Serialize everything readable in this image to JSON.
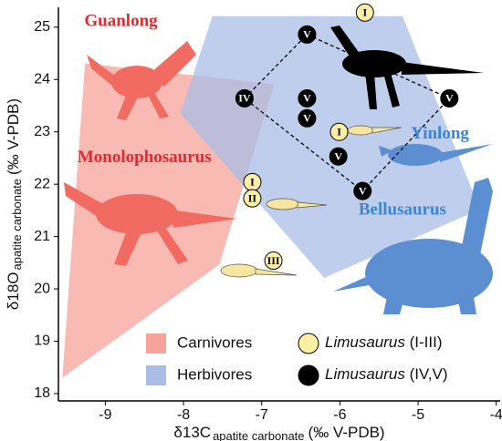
{
  "chart_data": {
    "type": "scatter",
    "xlabel": {
      "main": "δ13C",
      "sub": "apatite carbonate",
      "unit": "(‰ V-PDB)"
    },
    "ylabel": {
      "main": "δ18O",
      "sub": "apatite carbonate",
      "unit": "(‰ V-PDB)"
    },
    "xlim": [
      -9.6,
      -3.95
    ],
    "ylim": [
      17.86,
      25.38
    ],
    "xticks": [
      -9,
      -8,
      -7,
      -6,
      -5,
      -4
    ],
    "yticks": [
      18,
      19,
      20,
      21,
      22,
      23,
      24,
      25
    ],
    "regions": [
      {
        "name": "Carnivores",
        "color": "#f7a39b",
        "x": [
          -9.26,
          -6.84,
          -7.54,
          -9.55
        ],
        "y": [
          24.31,
          23.91,
          20.47,
          18.3
        ]
      },
      {
        "name": "Herbivores",
        "color": "#a9bde6",
        "x": [
          -7.63,
          -5.2,
          -4.21,
          -6.2,
          -8.04
        ],
        "y": [
          25.21,
          25.21,
          21.52,
          20.21,
          23.35
        ]
      }
    ],
    "series": [
      {
        "name": "Limusaurus (I-III)",
        "color": "#fdf0a6",
        "labels": [
          "I",
          "I",
          "I",
          "II",
          "III"
        ],
        "x": [
          -5.68,
          -6.01,
          -7.12,
          -7.12,
          -6.85
        ],
        "y": [
          25.28,
          23.0,
          22.04,
          21.73,
          20.54
        ]
      },
      {
        "name": "Limusaurus (IV,V)",
        "color": "#000000",
        "labels": [
          "IV",
          "V",
          "V",
          "V",
          "V",
          "V",
          "V"
        ],
        "x": [
          -7.22,
          -6.42,
          -6.42,
          -6.42,
          -6.02,
          -5.71,
          -4.6
        ],
        "y": [
          23.64,
          24.86,
          23.64,
          23.26,
          22.53,
          21.87,
          23.64
        ]
      }
    ],
    "annotations": [
      {
        "text": "Guanlong",
        "color": "#e8272e",
        "x": -8.8,
        "y": 25.1
      },
      {
        "text": "Monolophosaurus",
        "color": "#e8272e",
        "x": -8.5,
        "y": 22.5
      },
      {
        "text": "Yinlong",
        "color": "#3a86d6",
        "x": -4.72,
        "y": 22.95
      },
      {
        "text": "Bellusaurus",
        "color": "#3a86d6",
        "x": -5.2,
        "y": 21.5
      }
    ]
  }
}
